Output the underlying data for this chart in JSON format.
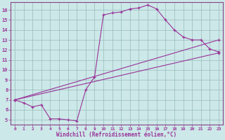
{
  "bg_color": "#cce8e8",
  "grid_color": "#99bbbb",
  "line_color": "#993399",
  "xlabel": "Windchill (Refroidissement éolien,°C)",
  "xlim": [
    -0.5,
    23.5
  ],
  "ylim": [
    4.5,
    16.8
  ],
  "xticks": [
    0,
    1,
    2,
    3,
    4,
    5,
    6,
    7,
    8,
    9,
    10,
    11,
    12,
    13,
    14,
    15,
    16,
    17,
    18,
    19,
    20,
    21,
    22,
    23
  ],
  "yticks": [
    5,
    6,
    7,
    8,
    9,
    10,
    11,
    12,
    13,
    14,
    15,
    16
  ],
  "curve1_x": [
    0,
    1,
    2,
    3,
    4,
    5,
    6,
    7,
    8,
    9,
    10,
    11,
    12,
    13,
    14,
    15,
    16,
    17,
    18,
    19,
    20,
    21,
    22,
    23
  ],
  "curve1_y": [
    7.0,
    6.7,
    6.3,
    6.5,
    5.1,
    5.1,
    5.0,
    4.9,
    8.0,
    9.3,
    15.5,
    15.7,
    15.8,
    16.1,
    16.2,
    16.5,
    16.1,
    15.0,
    14.0,
    13.3,
    13.0,
    13.0,
    12.1,
    11.8
  ],
  "line2_x": [
    0,
    23
  ],
  "line2_y": [
    7.0,
    11.7
  ],
  "line3_x": [
    0,
    23
  ],
  "line3_y": [
    7.0,
    13.0
  ]
}
